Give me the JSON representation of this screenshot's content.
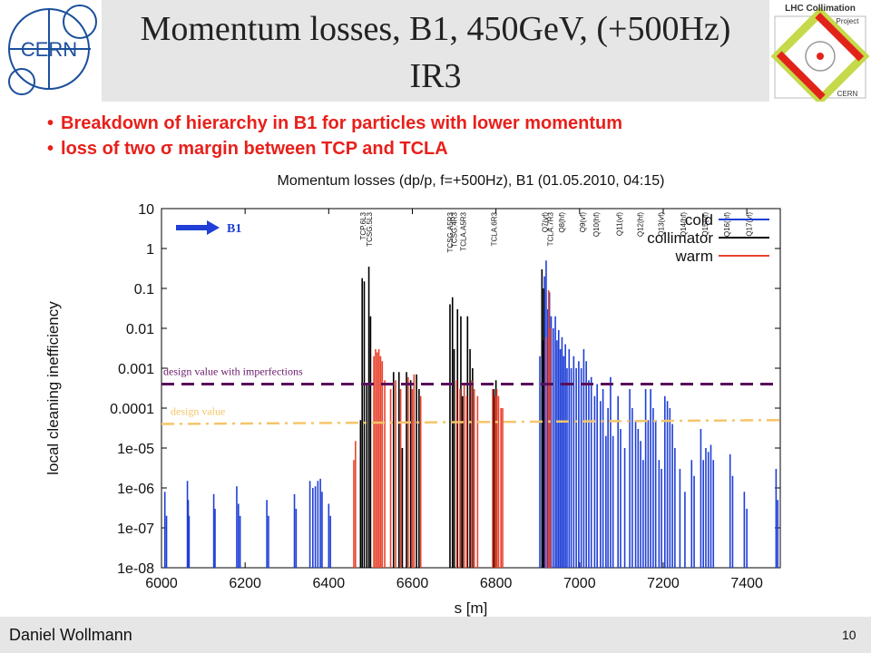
{
  "slide": {
    "title_line1": "Momentum losses, B1, 450GeV, (+500Hz)",
    "title_line2": "IR3",
    "bullets": [
      "Breakdown of hierarchy in B1 for particles with lower momentum",
      "loss of two σ margin between TCP and TCLA"
    ],
    "footer_name": "Daniel Wollmann",
    "page_number": "10",
    "logos": {
      "cern_text": "CERN",
      "lhc_line1": "LHC Collimation",
      "lhc_line2": "Project",
      "lhc_line3": "CERN"
    }
  },
  "chart_data": {
    "type": "bar",
    "title": "Momentum losses (dp/p, f=+500Hz), B1 (01.05.2010, 04:15)",
    "xlabel": "s [m]",
    "ylabel": "local cleaning inefficiency",
    "xlim": [
      6000,
      7480
    ],
    "ylim": [
      1e-08,
      10
    ],
    "yscale": "log",
    "x_ticks": [
      6000,
      6200,
      6400,
      6600,
      6800,
      7000,
      7200,
      7400
    ],
    "y_ticks": [
      {
        "v": 10,
        "label": "10"
      },
      {
        "v": 1,
        "label": "1"
      },
      {
        "v": 0.1,
        "label": "0.1"
      },
      {
        "v": 0.01,
        "label": "0.01"
      },
      {
        "v": 0.001,
        "label": "0.001"
      },
      {
        "v": 0.0001,
        "label": "0.0001"
      },
      {
        "v": 1e-05,
        "label": "1e-05"
      },
      {
        "v": 1e-06,
        "label": "1e-06"
      },
      {
        "v": 1e-07,
        "label": "1e-07"
      },
      {
        "v": 1e-08,
        "label": "1e-08"
      }
    ],
    "legend": {
      "placement": "top-right",
      "entries": [
        {
          "label": "cold",
          "color": "#1f3fd6"
        },
        {
          "label": "collimator",
          "color": "#000000"
        },
        {
          "label": "warm",
          "color": "#e8432e"
        }
      ]
    },
    "beam_label": "B1",
    "annotations": [
      {
        "text": "design value with imperfections",
        "color": "#6b1a6b"
      },
      {
        "text": "design value",
        "color": "#f5c56a"
      }
    ],
    "reference_lines": [
      {
        "name": "design value with imperfections",
        "value": 0.0004,
        "style": "dashed",
        "color": "#5a0f5a"
      },
      {
        "name": "design value",
        "value": 4e-05,
        "end_value": 5e-05,
        "style": "dashdot",
        "color": "#f5c56a"
      }
    ],
    "element_labels": [
      {
        "x": 6482,
        "text": "TCP.6L3"
      },
      {
        "x": 6497,
        "text": "TCSG.5L3"
      },
      {
        "x": 6690,
        "text": "TCSG.A5R3"
      },
      {
        "x": 6700,
        "text": "TCSG.4R3"
      },
      {
        "x": 6722,
        "text": "TCLA.A5R3"
      },
      {
        "x": 6795,
        "text": "TCLA.6R3"
      },
      {
        "x": 6917,
        "text": "Q7(vf)"
      },
      {
        "x": 6930,
        "text": "TCLA.7R3"
      },
      {
        "x": 6957,
        "text": "Q8(hf)"
      },
      {
        "x": 7007,
        "text": "Q9(vf)"
      },
      {
        "x": 7040,
        "text": "Q10(hf)"
      },
      {
        "x": 7095,
        "text": "Q11(vf)"
      },
      {
        "x": 7145,
        "text": "Q12(hf)"
      },
      {
        "x": 7195,
        "text": "Q13(vf)"
      },
      {
        "x": 7248,
        "text": "Q14(hf)"
      },
      {
        "x": 7300,
        "text": "Q15(vf)"
      },
      {
        "x": 7352,
        "text": "Q16(hf)"
      },
      {
        "x": 7405,
        "text": "Q17(vf)"
      }
    ],
    "series": [
      {
        "name": "cold",
        "color": "#1f3fd6",
        "points": [
          [
            6008,
            8e-07
          ],
          [
            6012,
            2e-07
          ],
          [
            6062,
            1.5e-06
          ],
          [
            6064,
            5e-07
          ],
          [
            6066,
            2e-07
          ],
          [
            6125,
            7e-07
          ],
          [
            6128,
            3e-07
          ],
          [
            6180,
            1.1e-06
          ],
          [
            6184,
            4e-07
          ],
          [
            6188,
            2e-07
          ],
          [
            6252,
            5e-07
          ],
          [
            6256,
            2e-07
          ],
          [
            6318,
            7e-07
          ],
          [
            6322,
            3e-07
          ],
          [
            6355,
            1.5e-06
          ],
          [
            6362,
            1e-06
          ],
          [
            6368,
            1.1e-06
          ],
          [
            6374,
            1.5e-06
          ],
          [
            6380,
            1.7e-06
          ],
          [
            6384,
            8e-07
          ],
          [
            6400,
            4e-07
          ],
          [
            6404,
            2e-07
          ],
          [
            6905,
            0.002
          ],
          [
            6911,
            0.005
          ],
          [
            6916,
            0.2
          ],
          [
            6920,
            0.5
          ],
          [
            6924,
            0.03
          ],
          [
            6928,
            0.08
          ],
          [
            6932,
            0.02
          ],
          [
            6937,
            0.01
          ],
          [
            6942,
            0.02
          ],
          [
            6946,
            0.005
          ],
          [
            6950,
            0.009
          ],
          [
            6954,
            0.003
          ],
          [
            6958,
            0.006
          ],
          [
            6962,
            0.002
          ],
          [
            6966,
            0.004
          ],
          [
            6970,
            0.001
          ],
          [
            6975,
            0.003
          ],
          [
            6980,
            0.001
          ],
          [
            6986,
            0.002
          ],
          [
            6992,
            0.001
          ],
          [
            6998,
            0.0015
          ],
          [
            7004,
            0.001
          ],
          [
            7010,
            0.003
          ],
          [
            7016,
            0.0015
          ],
          [
            7022,
            0.0005
          ],
          [
            7028,
            0.0006
          ],
          [
            7036,
            0.0002
          ],
          [
            7042,
            0.0004
          ],
          [
            7050,
            0.00015
          ],
          [
            7056,
            0.0003
          ],
          [
            7063,
            2e-05
          ],
          [
            7068,
            0.0001
          ],
          [
            7074,
            0.0006
          ],
          [
            7080,
            2e-05
          ],
          [
            7092,
            0.0002
          ],
          [
            7098,
            3e-05
          ],
          [
            7108,
            1e-05
          ],
          [
            7120,
            0.0003
          ],
          [
            7126,
            0.0001
          ],
          [
            7134,
            5e-05
          ],
          [
            7140,
            3e-05
          ],
          [
            7146,
            1.5e-05
          ],
          [
            7152,
            5e-06
          ],
          [
            7158,
            0.0003
          ],
          [
            7164,
            5e-05
          ],
          [
            7170,
            0.0003
          ],
          [
            7176,
            0.0001
          ],
          [
            7182,
            5e-05
          ],
          [
            7190,
            5e-06
          ],
          [
            7196,
            3e-06
          ],
          [
            7204,
            0.0002
          ],
          [
            7210,
            0.00015
          ],
          [
            7216,
            0.0001
          ],
          [
            7222,
            4e-05
          ],
          [
            7228,
            1e-05
          ],
          [
            7240,
            3e-06
          ],
          [
            7252,
            8e-07
          ],
          [
            7268,
            5e-06
          ],
          [
            7274,
            2e-06
          ],
          [
            7290,
            3e-05
          ],
          [
            7296,
            5e-06
          ],
          [
            7302,
            1e-05
          ],
          [
            7308,
            8e-06
          ],
          [
            7314,
            1.2e-05
          ],
          [
            7320,
            5e-06
          ],
          [
            7360,
            7e-06
          ],
          [
            7366,
            2e-06
          ],
          [
            7394,
            8e-07
          ],
          [
            7400,
            3e-07
          ],
          [
            7470,
            3e-06
          ],
          [
            7474,
            5e-07
          ]
        ]
      },
      {
        "name": "collimator",
        "color": "#000000",
        "points": [
          [
            6476,
            5e-05
          ],
          [
            6480,
            0.18
          ],
          [
            6485,
            0.15
          ],
          [
            6491,
            0.0004
          ],
          [
            6496,
            0.35
          ],
          [
            6500,
            0.02
          ],
          [
            6555,
            0.0008
          ],
          [
            6568,
            0.0008
          ],
          [
            6576,
            1e-05
          ],
          [
            6586,
            0.0008
          ],
          [
            6596,
            0.0005
          ],
          [
            6610,
            0.0007
          ],
          [
            6616,
            0.0003
          ],
          [
            6690,
            0.04
          ],
          [
            6696,
            0.06
          ],
          [
            6700,
            0.003
          ],
          [
            6708,
            0.03
          ],
          [
            6716,
            0.02
          ],
          [
            6720,
            0.0002
          ],
          [
            6732,
            0.02
          ],
          [
            6738,
            0.003
          ],
          [
            6744,
            0.001
          ],
          [
            6795,
            0.0003
          ],
          [
            6800,
            0.0005
          ],
          [
            6910,
            0.3
          ],
          [
            6914,
            0.1
          ]
        ]
      },
      {
        "name": "warm",
        "color": "#e8432e",
        "points": [
          [
            6460,
            5e-06
          ],
          [
            6464,
            1.5e-05
          ],
          [
            6508,
            0.002
          ],
          [
            6512,
            0.003
          ],
          [
            6516,
            0.0025
          ],
          [
            6520,
            0.003
          ],
          [
            6524,
            0.002
          ],
          [
            6528,
            0.0015
          ],
          [
            6534,
            0.0005
          ],
          [
            6548,
            0.0003
          ],
          [
            6560,
            0.0005
          ],
          [
            6572,
            0.0003
          ],
          [
            6590,
            0.0006
          ],
          [
            6600,
            0.0003
          ],
          [
            6604,
            0.0007
          ],
          [
            6620,
            0.0002
          ],
          [
            6706,
            0.0005
          ],
          [
            6714,
            0.0003
          ],
          [
            6724,
            0.0004
          ],
          [
            6730,
            0.0002
          ],
          [
            6742,
            0.0005
          ],
          [
            6748,
            0.0003
          ],
          [
            6756,
            0.0002
          ],
          [
            6792,
            0.0003
          ],
          [
            6798,
            0.0002
          ],
          [
            6802,
            0.0003
          ],
          [
            6806,
            0.0002
          ],
          [
            6812,
            0.0001
          ],
          [
            6816,
            0.0001
          ],
          [
            6920,
            0.006
          ],
          [
            6926,
            0.09
          ],
          [
            6930,
            0.01
          ]
        ]
      }
    ]
  }
}
